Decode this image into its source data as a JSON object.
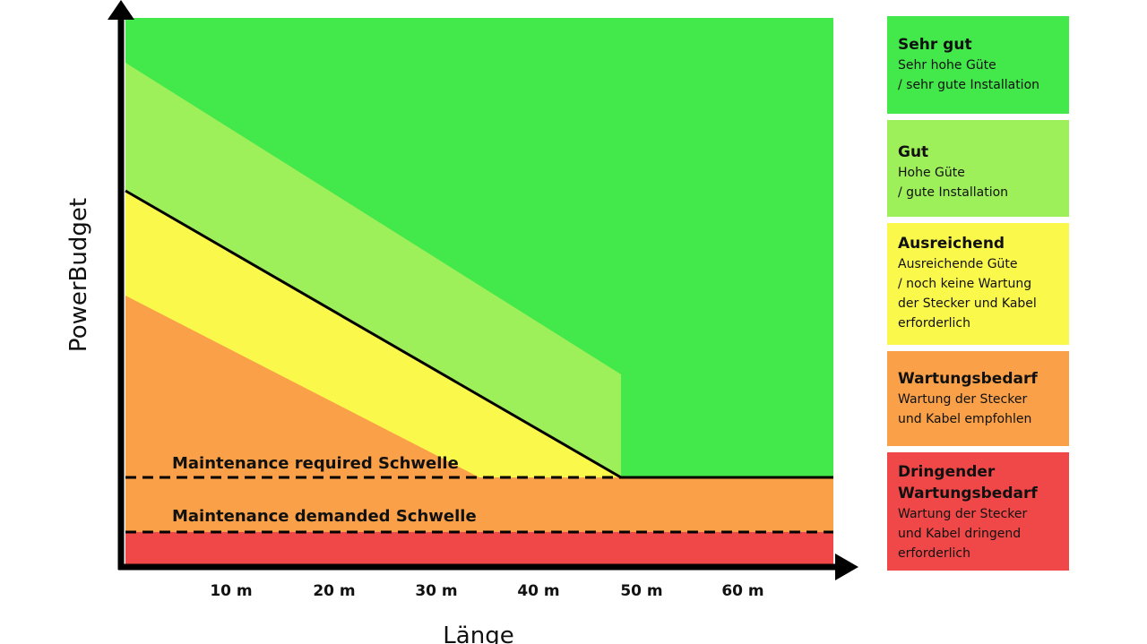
{
  "axes": {
    "x_title": "Länge",
    "y_title": "PowerBudget",
    "x_ticks": [
      "10 m",
      "20 m",
      "30 m",
      "40 m",
      "50 m",
      "60 m"
    ]
  },
  "thresholds": [
    {
      "label": "Maintenance required Schwelle"
    },
    {
      "label": "Maintenance demanded Schwelle"
    }
  ],
  "legend": [
    {
      "title": "Sehr gut",
      "lines": [
        "Sehr hohe Güte",
        "/ sehr gute Installation"
      ],
      "color": "#43e84a"
    },
    {
      "title": "Gut",
      "lines": [
        "Hohe Güte",
        "/ gute Installation"
      ],
      "color": "#9ef05a"
    },
    {
      "title": "Ausreichend",
      "lines": [
        "Ausreichende Güte",
        "/ noch keine Wartung",
        "der Stecker und Kabel",
        "erforderlich"
      ],
      "color": "#fbf84c"
    },
    {
      "title": "Wartungsbedarf",
      "lines": [
        "Wartung der Stecker",
        "und Kabel empfohlen"
      ],
      "color": "#f9a048"
    },
    {
      "title": "Dringender Wartungsbedarf",
      "lines": [
        "Wartung der Stecker",
        "und Kabel dringend",
        "erforderlich"
      ],
      "color": "#f04848"
    }
  ]
}
